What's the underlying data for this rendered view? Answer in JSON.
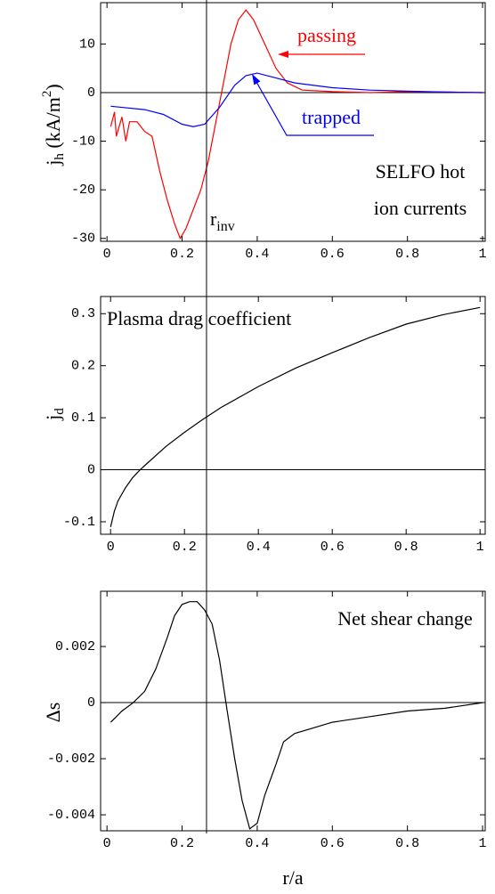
{
  "chart_data": [
    {
      "type": "line",
      "xlim": [
        -0.017,
        1.007
      ],
      "ylim": [
        -30.6,
        18.5
      ],
      "xticks": [
        0,
        0.2,
        0.4,
        0.6,
        0.8,
        1
      ],
      "yticks": [
        -30,
        -20,
        -10,
        0,
        10
      ],
      "zero_line": true,
      "ylabel": {
        "text": "j",
        "sub": "h",
        "suffix": " (kA/m",
        "sup": "2",
        "end": ")"
      },
      "annotations": [
        "SELFO hot",
        "ion currents"
      ],
      "r_inv": {
        "text": "r",
        "sub": "inv",
        "x": 0.265
      },
      "series": [
        {
          "name": "passing",
          "color": "#ff0000",
          "x": [
            0.01,
            0.02,
            0.025,
            0.04,
            0.05,
            0.06,
            0.08,
            0.1,
            0.12,
            0.14,
            0.16,
            0.18,
            0.195,
            0.21,
            0.23,
            0.25,
            0.27,
            0.29,
            0.31,
            0.33,
            0.35,
            0.37,
            0.39,
            0.42,
            0.45,
            0.48,
            0.52,
            0.6,
            0.7,
            0.8,
            0.9,
            1.0
          ],
          "values": [
            -7,
            -4,
            -9,
            -5,
            -10,
            -6,
            -6,
            -8,
            -9,
            -16,
            -22,
            -27,
            -30,
            -28,
            -24,
            -20,
            -14,
            -6,
            2,
            10,
            15,
            17,
            15,
            10,
            5,
            2,
            0.5,
            0.2,
            0,
            0.2,
            0.1,
            0
          ]
        },
        {
          "name": "trapped",
          "color": "#0000ff",
          "x": [
            0.01,
            0.1,
            0.15,
            0.2,
            0.23,
            0.26,
            0.3,
            0.34,
            0.37,
            0.4,
            0.45,
            0.5,
            0.6,
            0.7,
            0.8,
            0.9,
            1.0
          ],
          "values": [
            -2.8,
            -3.5,
            -4.5,
            -6.5,
            -7,
            -6.5,
            -3,
            1.5,
            3.5,
            4,
            3,
            2,
            1,
            0.5,
            0.3,
            0.1,
            0
          ]
        }
      ]
    },
    {
      "type": "line",
      "xlim": [
        -0.027,
        1.014
      ],
      "ylim": [
        -0.124,
        0.333
      ],
      "xticks": [
        0,
        0.2,
        0.4,
        0.6,
        0.8,
        1
      ],
      "yticks": [
        -0.1,
        0,
        0.1,
        0.2,
        0.3
      ],
      "zero_line": true,
      "ylabel": {
        "text": "j",
        "sub": "d"
      },
      "annotations": [
        "Plasma drag coefficient"
      ],
      "series": [
        {
          "color": "#000000",
          "x": [
            0,
            0.01,
            0.02,
            0.04,
            0.06,
            0.08,
            0.1,
            0.15,
            0.2,
            0.25,
            0.3,
            0.4,
            0.5,
            0.6,
            0.7,
            0.8,
            0.9,
            1.0
          ],
          "values": [
            -0.11,
            -0.08,
            -0.06,
            -0.035,
            -0.015,
            0,
            0.013,
            0.045,
            0.072,
            0.097,
            0.12,
            0.16,
            0.195,
            0.225,
            0.254,
            0.28,
            0.298,
            0.312
          ]
        }
      ]
    },
    {
      "type": "line",
      "xlim": [
        -0.017,
        1.007
      ],
      "ylim": [
        -0.00457,
        0.00397
      ],
      "xticks": [
        0,
        0.2,
        0.4,
        0.6,
        0.8,
        1
      ],
      "yticks": [
        -0.004,
        -0.002,
        0,
        0.002
      ],
      "zero_line": true,
      "ylabel": "Δs",
      "xlabel": "r/a",
      "annotations": [
        "Net shear change"
      ],
      "series": [
        {
          "color": "#000000",
          "x": [
            0.01,
            0.04,
            0.07,
            0.1,
            0.13,
            0.16,
            0.18,
            0.2,
            0.22,
            0.24,
            0.26,
            0.28,
            0.3,
            0.32,
            0.34,
            0.36,
            0.38,
            0.4,
            0.42,
            0.45,
            0.47,
            0.5,
            0.55,
            0.6,
            0.7,
            0.8,
            0.9,
            1.0
          ],
          "values": [
            -0.0007,
            -0.0003,
            0,
            0.0004,
            0.0012,
            0.0023,
            0.0031,
            0.0035,
            0.0036,
            0.0036,
            0.0033,
            0.0028,
            0.0015,
            -0.0003,
            -0.002,
            -0.0035,
            -0.0045,
            -0.0043,
            -0.0033,
            -0.0022,
            -0.0014,
            -0.0011,
            -0.0009,
            -0.0007,
            -0.0005,
            -0.0003,
            -0.0002,
            0
          ]
        }
      ]
    }
  ]
}
